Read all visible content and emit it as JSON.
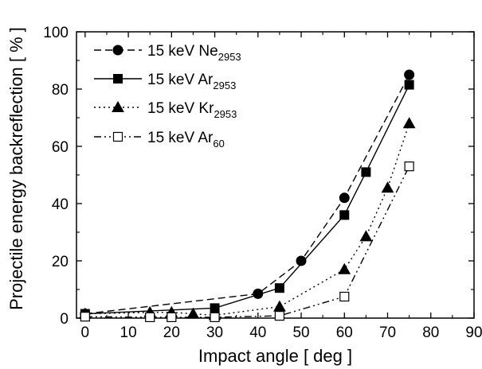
{
  "chart_data": {
    "type": "line",
    "xlabel": "Impact angle [ deg ]",
    "ylabel": "Projectile energy backreflection [ % ]",
    "xlim": [
      -2,
      90
    ],
    "ylim": [
      0,
      100
    ],
    "xticks": [
      0,
      10,
      20,
      30,
      40,
      50,
      60,
      70,
      80,
      90
    ],
    "yticks": [
      0,
      20,
      40,
      60,
      80,
      100
    ],
    "grid": false,
    "legend_position": "top-left",
    "series": [
      {
        "name": "15 keV Ne",
        "name_sub": "2953",
        "marker": "filled-circle",
        "line_style": "dashed",
        "x": [
          0,
          40,
          50,
          60,
          75
        ],
        "y": [
          1.5,
          8.5,
          20,
          42,
          85
        ]
      },
      {
        "name": "15 keV Ar",
        "name_sub": "2953",
        "marker": "filled-square",
        "line_style": "solid",
        "x": [
          0,
          30,
          45,
          60,
          65,
          75
        ],
        "y": [
          1.5,
          3.5,
          10.5,
          36,
          51,
          81.5
        ]
      },
      {
        "name": "15 keV Kr",
        "name_sub": "2953",
        "marker": "filled-triangle",
        "line_style": "dotted",
        "x": [
          0,
          15,
          20,
          25,
          30,
          45,
          60,
          65,
          70,
          75
        ],
        "y": [
          1.5,
          2,
          2,
          1.5,
          1,
          4,
          17,
          28.5,
          45.5,
          68
        ]
      },
      {
        "name": "15 keV Ar",
        "name_sub": "60",
        "marker": "open-square",
        "line_style": "dash-dot-dot",
        "x": [
          0,
          15,
          20,
          30,
          45,
          60,
          75
        ],
        "y": [
          0.5,
          0.3,
          0.3,
          0.3,
          0.8,
          7.5,
          53
        ]
      }
    ]
  }
}
